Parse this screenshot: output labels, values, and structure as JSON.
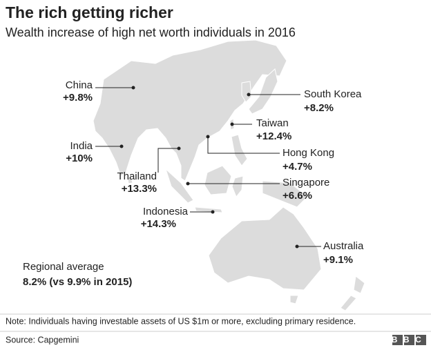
{
  "header": {
    "title": "The rich getting richer",
    "subtitle": "Wealth increase of high net worth individuals in 2016"
  },
  "labels": [
    {
      "name": "China",
      "value": "+9.8%"
    },
    {
      "name": "South Korea",
      "value": "+8.2%"
    },
    {
      "name": "Taiwan",
      "value": "+12.4%"
    },
    {
      "name": "Hong Kong",
      "value": "+4.7%"
    },
    {
      "name": "India",
      "value": "+10%"
    },
    {
      "name": "Thailand",
      "value": "+13.3%"
    },
    {
      "name": "Singapore",
      "value": "+6.6%"
    },
    {
      "name": "Indonesia",
      "value": "+14.3%"
    },
    {
      "name": "Australia",
      "value": "+9.1%"
    }
  ],
  "regional_average": {
    "label": "Regional average",
    "value": "8.2% (vs 9.9% in 2015)"
  },
  "footer": {
    "note": "Note: Individuals having investable assets of US $1m or more, excluding primary residence.",
    "source": "Source: Capgemini",
    "logo": "BBC"
  }
}
